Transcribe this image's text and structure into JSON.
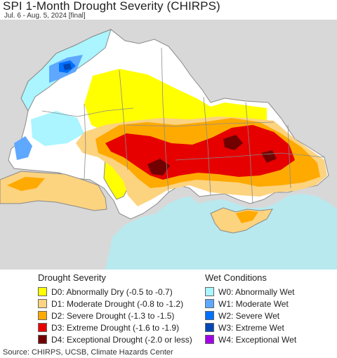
{
  "header": {
    "title": "SPI 1-Month Drought Severity (CHIRPS)",
    "subtitle": "Jul. 6 - Aug. 5, 2024 [final]"
  },
  "map": {
    "colors": {
      "background": "#d8d8d8",
      "sea": "#b8e9ee",
      "land_base": "#ffffff",
      "border": "#8a8a8a"
    }
  },
  "legend": {
    "drought": {
      "heading": "Drought Severity",
      "items": [
        {
          "code": "D0",
          "label": "D0: Abnormally Dry (-0.5 to -0.7)",
          "color": "#ffff00"
        },
        {
          "code": "D1",
          "label": "D1: Moderate Drought (-0.8 to -1.2)",
          "color": "#fcd37f"
        },
        {
          "code": "D2",
          "label": "D2: Severe Drought (-1.3 to -1.5)",
          "color": "#ffaa00"
        },
        {
          "code": "D3",
          "label": "D3: Extreme Drought (-1.6 to -1.9)",
          "color": "#e60000"
        },
        {
          "code": "D4",
          "label": "D4: Exceptional Drought (-2.0 or less)",
          "color": "#730000"
        }
      ]
    },
    "wet": {
      "heading": "Wet Conditions",
      "items": [
        {
          "code": "W0",
          "label": "W0: Abnormally Wet",
          "color": "#aaf5ff"
        },
        {
          "code": "W1",
          "label": "W1: Moderate Wet",
          "color": "#5fa8ff"
        },
        {
          "code": "W2",
          "label": "W2: Severe Wet",
          "color": "#0070ff"
        },
        {
          "code": "W3",
          "label": "W3: Extreme Wet",
          "color": "#0046b4"
        },
        {
          "code": "W4",
          "label": "W4: Exceptional Wet",
          "color": "#a000e6"
        }
      ]
    }
  },
  "footer": {
    "source": "Source: CHIRPS, UCSB, Climate Hazards Center"
  }
}
